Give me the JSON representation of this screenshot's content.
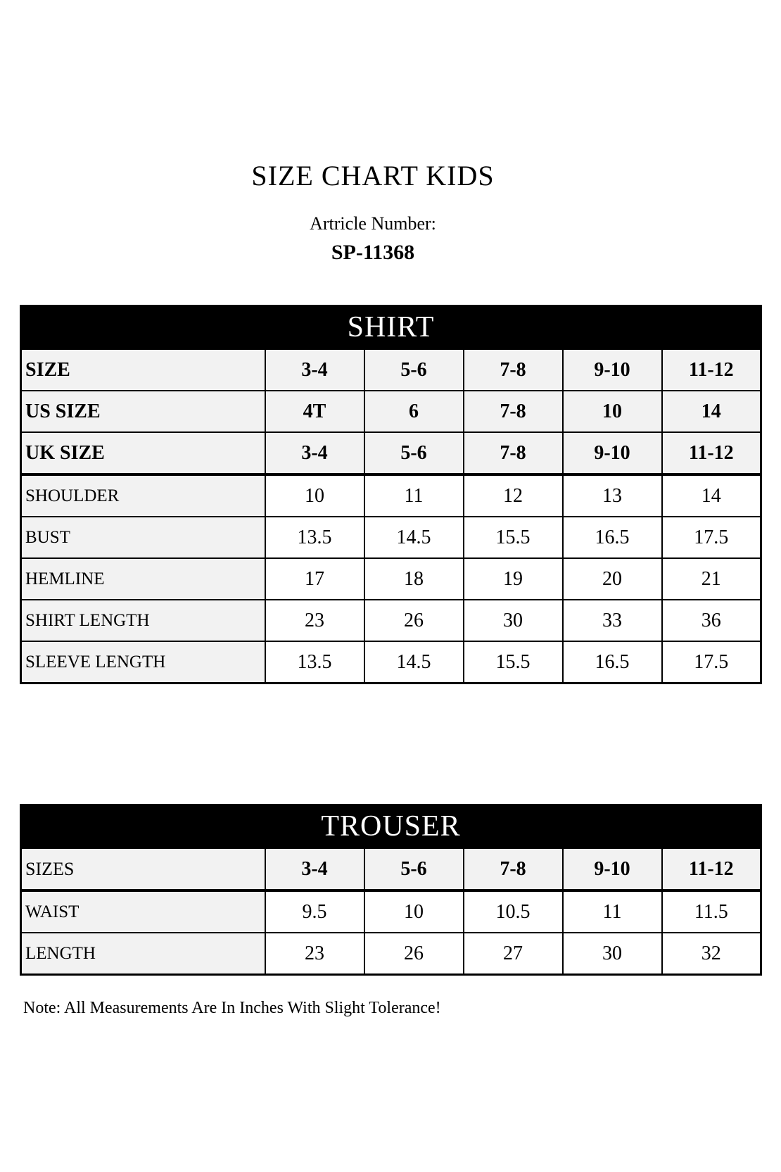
{
  "page": {
    "title": "SIZE CHART KIDS",
    "article_label": "Artricle Number:",
    "article_number": "SP-11368",
    "note": "Note: All Measurements Are In Inches With Slight Tolerance!"
  },
  "colors": {
    "band_background": "#000000",
    "band_text": "#ffffff",
    "label_cell_background": "#f2f2f2",
    "value_cell_background": "#ffffff",
    "border": "#000000"
  },
  "shirt_table": {
    "header": "SHIRT",
    "size_rows": [
      {
        "label": "SIZE",
        "label_bold": true,
        "values": [
          "3-4",
          "5-6",
          "7-8",
          "9-10",
          "11-12"
        ]
      },
      {
        "label": "US SIZE",
        "label_bold": true,
        "values": [
          "4T",
          "6",
          "7-8",
          "10",
          "14"
        ]
      },
      {
        "label": "UK SIZE",
        "label_bold": true,
        "values": [
          "3-4",
          "5-6",
          "7-8",
          "9-10",
          "11-12"
        ]
      }
    ],
    "measurement_rows": [
      {
        "label": "SHOULDER",
        "values": [
          "10",
          "11",
          "12",
          "13",
          "14"
        ]
      },
      {
        "label": "BUST",
        "values": [
          "13.5",
          "14.5",
          "15.5",
          "16.5",
          "17.5"
        ]
      },
      {
        "label": "HEMLINE",
        "values": [
          "17",
          "18",
          "19",
          "20",
          "21"
        ]
      },
      {
        "label": "SHIRT LENGTH",
        "values": [
          "23",
          "26",
          "30",
          "33",
          "36"
        ]
      },
      {
        "label": "SLEEVE LENGTH",
        "values": [
          "13.5",
          "14.5",
          "15.5",
          "16.5",
          "17.5"
        ]
      }
    ]
  },
  "trouser_table": {
    "header": "TROUSER",
    "size_rows": [
      {
        "label": "SIZES",
        "label_bold": false,
        "values": [
          "3-4",
          "5-6",
          "7-8",
          "9-10",
          "11-12"
        ]
      }
    ],
    "measurement_rows": [
      {
        "label": "WAIST",
        "values": [
          "9.5",
          "10",
          "10.5",
          "11",
          "11.5"
        ]
      },
      {
        "label": "LENGTH",
        "values": [
          "23",
          "26",
          "27",
          "30",
          "32"
        ]
      }
    ]
  }
}
